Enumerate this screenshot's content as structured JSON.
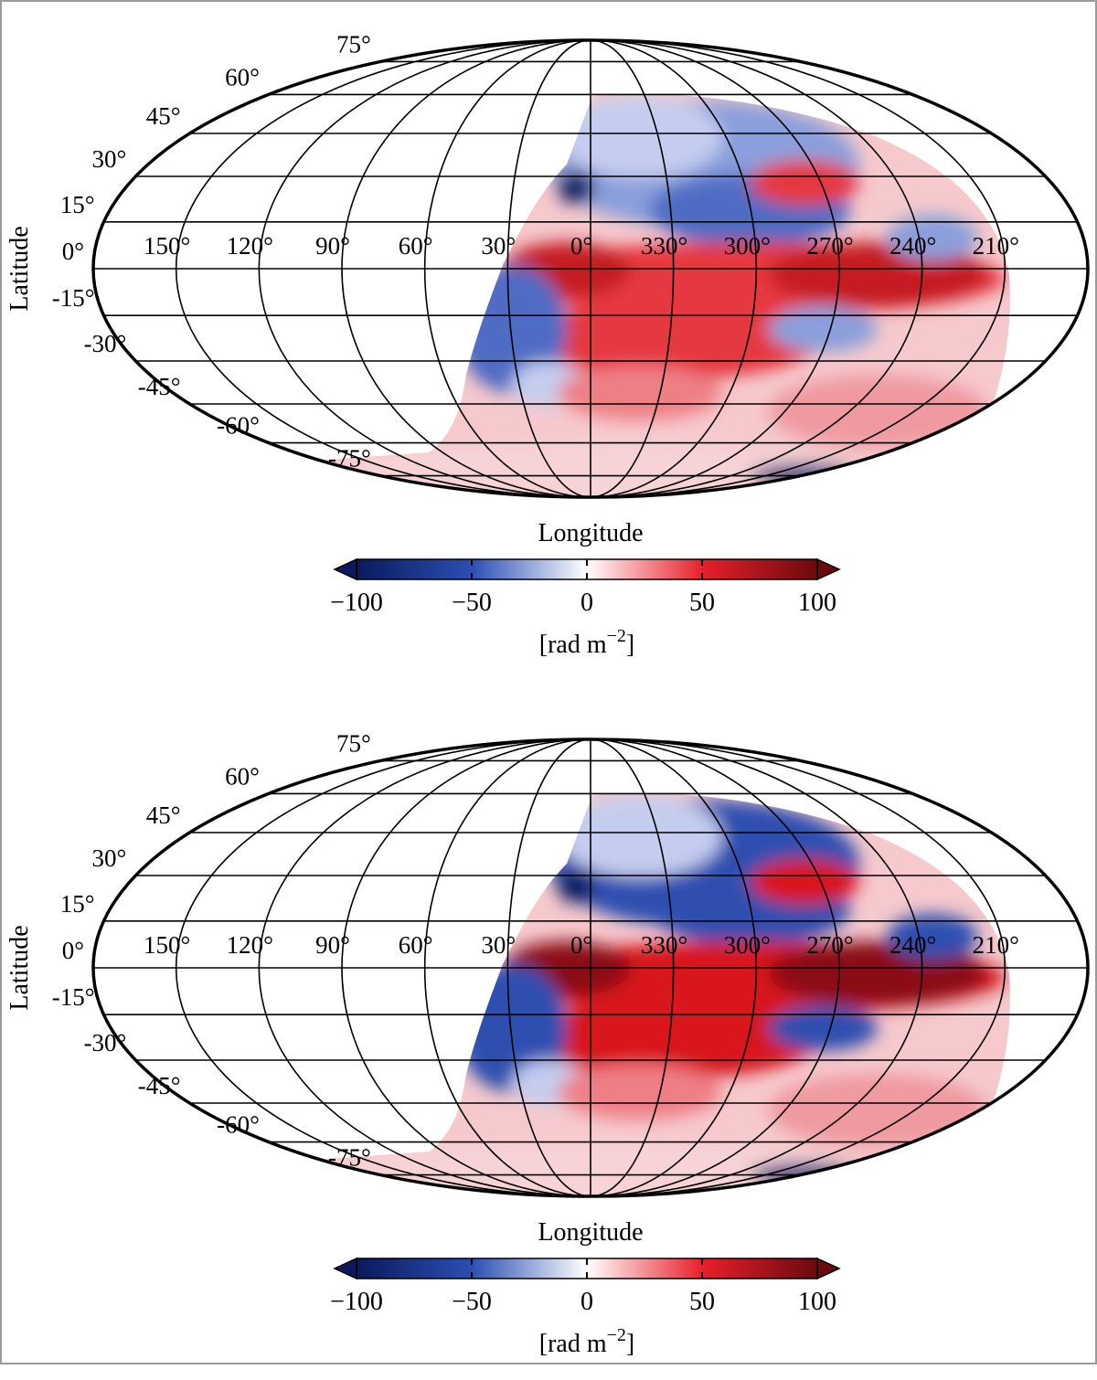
{
  "chart_data": [
    {
      "type": "heatmap",
      "projection": "Mollweide",
      "xlabel": "Longitude",
      "ylabel": "Latitude",
      "longitude_ticks": [
        "150°",
        "120°",
        "90°",
        "60°",
        "30°",
        "0°",
        "330°",
        "300°",
        "270°",
        "240°",
        "210°"
      ],
      "latitude_ticks": [
        "75°",
        "60°",
        "45°",
        "30°",
        "15°",
        "0°",
        "-15°",
        "-30°",
        "-45°",
        "-60°",
        "-75°"
      ],
      "colorbar": {
        "ticks": [
          "−100",
          "−50",
          "0",
          "50",
          "100"
        ],
        "label_text": "[rad m",
        "label_exp": "−2",
        "label_close": "]",
        "range": [
          -100,
          100
        ],
        "extend": "both",
        "colors": [
          "#0a1a5c",
          "#2a4fb3",
          "#ffffff",
          "#e8202a",
          "#6a0a0e"
        ]
      }
    },
    {
      "type": "heatmap",
      "projection": "Mollweide",
      "xlabel": "Longitude",
      "ylabel": "Latitude",
      "longitude_ticks": [
        "150°",
        "120°",
        "90°",
        "60°",
        "30°",
        "0°",
        "330°",
        "300°",
        "270°",
        "240°",
        "210°"
      ],
      "latitude_ticks": [
        "75°",
        "60°",
        "45°",
        "30°",
        "15°",
        "0°",
        "-15°",
        "-30°",
        "-45°",
        "-60°",
        "-75°"
      ],
      "colorbar": {
        "ticks": [
          "−100",
          "−50",
          "0",
          "50",
          "100"
        ],
        "label_text": "[rad m",
        "label_exp": "−2",
        "label_close": "]",
        "range": [
          -100,
          100
        ],
        "extend": "both",
        "colors": [
          "#0a1a5c",
          "#2a4fb3",
          "#ffffff",
          "#e8202a",
          "#6a0a0e"
        ]
      }
    }
  ]
}
